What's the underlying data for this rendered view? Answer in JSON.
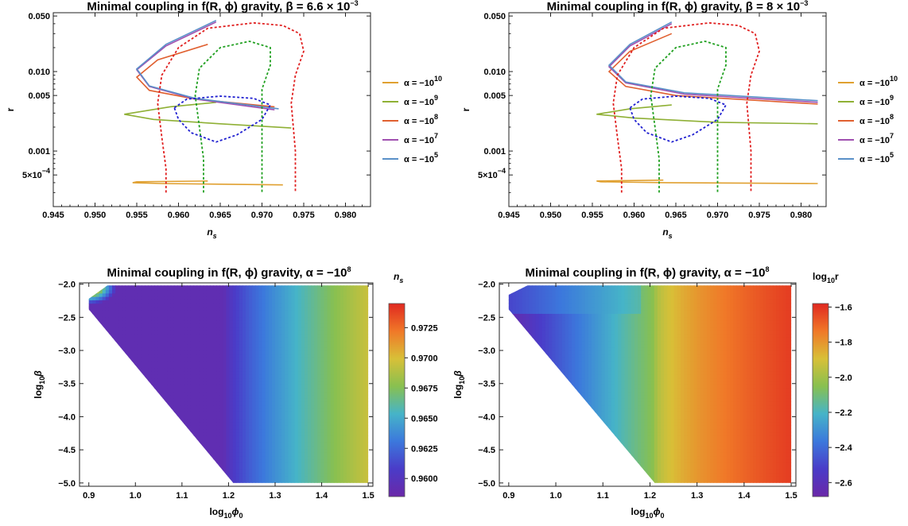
{
  "chart_data": [
    {
      "id": "tl",
      "type": "line",
      "title": "Minimal coupling in f(R, ϕ) gravity, β = 6.6 × 10",
      "title_exp": "−3",
      "xlabel": "n",
      "xlabel_sub": "s",
      "ylabel": "r",
      "xlim": [
        0.945,
        0.983
      ],
      "ylim": [
        0.0002,
        0.055
      ],
      "yscale": "log",
      "xticks": [
        "0.945",
        "0.950",
        "0.955",
        "0.960",
        "0.965",
        "0.970",
        "0.975",
        "0.980"
      ],
      "yticks": [
        {
          "v": 0.05,
          "label": "0.050"
        },
        {
          "v": 0.01,
          "label": "0.010"
        },
        {
          "v": 0.005,
          "label": "0.005"
        },
        {
          "v": 0.001,
          "label": "0.001"
        },
        {
          "v": 0.0005,
          "label": "5×10",
          "exp": "−4"
        }
      ],
      "legend_position": "right",
      "series": [
        {
          "name": "α = −10",
          "exp": "10",
          "color": "#e0a030",
          "style": "solid",
          "points": [
            [
              0.9635,
              0.00042
            ],
            [
              0.955,
              0.00041
            ],
            [
              0.9545,
              0.0004
            ],
            [
              0.958,
              0.00039
            ],
            [
              0.9725,
              0.000375
            ]
          ]
        },
        {
          "name": "α = −10",
          "exp": "9",
          "color": "#8fb035",
          "style": "solid",
          "points": [
            [
              0.9645,
              0.0041
            ],
            [
              0.959,
              0.0036
            ],
            [
              0.9535,
              0.0029
            ],
            [
              0.957,
              0.0025
            ],
            [
              0.965,
              0.0022
            ],
            [
              0.9735,
              0.00195
            ]
          ]
        },
        {
          "name": "α = −10",
          "exp": "8",
          "color": "#e06030",
          "style": "solid",
          "points": [
            [
              0.9635,
              0.022
            ],
            [
              0.9575,
              0.014
            ],
            [
              0.955,
              0.0085
            ],
            [
              0.9565,
              0.0058
            ],
            [
              0.962,
              0.0045
            ],
            [
              0.9715,
              0.0036
            ]
          ]
        },
        {
          "name": "α = −10",
          "exp": "7",
          "color": "#a050b0",
          "style": "solid",
          "points": [
            [
              0.9645,
              0.042
            ],
            [
              0.9585,
              0.021
            ],
            [
              0.955,
              0.0105
            ],
            [
              0.9565,
              0.0065
            ],
            [
              0.962,
              0.0045
            ],
            [
              0.9715,
              0.0033
            ]
          ]
        },
        {
          "name": "α = −10",
          "exp": "5",
          "color": "#5a90c8",
          "style": "solid",
          "points": [
            [
              0.9645,
              0.044
            ],
            [
              0.9585,
              0.022
            ],
            [
              0.955,
              0.0108
            ],
            [
              0.9565,
              0.0066
            ],
            [
              0.962,
              0.0046
            ],
            [
              0.972,
              0.0034
            ]
          ]
        },
        {
          "name": "",
          "color": "#e02020",
          "style": "dashed",
          "points": [
            [
              0.9585,
              0.0003
            ],
            [
              0.9585,
              0.0006
            ],
            [
              0.958,
              0.0015
            ],
            [
              0.9575,
              0.004
            ],
            [
              0.958,
              0.009
            ],
            [
              0.96,
              0.02
            ],
            [
              0.9635,
              0.035
            ],
            [
              0.969,
              0.041
            ],
            [
              0.9725,
              0.038
            ],
            [
              0.9745,
              0.03
            ],
            [
              0.975,
              0.018
            ],
            [
              0.974,
              0.009
            ],
            [
              0.9735,
              0.004
            ],
            [
              0.974,
              0.001
            ],
            [
              0.974,
              0.0003
            ]
          ]
        },
        {
          "name": "",
          "color": "#20a020",
          "style": "dashed",
          "points": [
            [
              0.963,
              0.0003
            ],
            [
              0.963,
              0.0008
            ],
            [
              0.9625,
              0.002
            ],
            [
              0.962,
              0.005
            ],
            [
              0.9625,
              0.011
            ],
            [
              0.965,
              0.02
            ],
            [
              0.9685,
              0.024
            ],
            [
              0.971,
              0.02
            ],
            [
              0.971,
              0.012
            ],
            [
              0.97,
              0.006
            ],
            [
              0.97,
              0.002
            ],
            [
              0.97,
              0.0006
            ],
            [
              0.97,
              0.0003
            ]
          ]
        },
        {
          "name": "",
          "color": "#2020d0",
          "style": "dashed",
          "points": [
            [
              0.9595,
              0.0035
            ],
            [
              0.961,
              0.0045
            ],
            [
              0.965,
              0.0049
            ],
            [
              0.969,
              0.0046
            ],
            [
              0.971,
              0.0038
            ],
            [
              0.97,
              0.0025
            ],
            [
              0.967,
              0.0016
            ],
            [
              0.9645,
              0.0013
            ],
            [
              0.9615,
              0.0017
            ],
            [
              0.96,
              0.0025
            ],
            [
              0.9595,
              0.0035
            ]
          ]
        }
      ]
    },
    {
      "id": "tr",
      "type": "line",
      "title": "Minimal coupling in f(R, ϕ) gravity, β = 8 × 10",
      "title_exp": "−3",
      "xlabel": "n",
      "xlabel_sub": "s",
      "ylabel": "r",
      "xlim": [
        0.945,
        0.983
      ],
      "ylim": [
        0.0002,
        0.055
      ],
      "yscale": "log",
      "xticks": [
        "0.945",
        "0.950",
        "0.955",
        "0.960",
        "0.965",
        "0.970",
        "0.975",
        "0.980"
      ],
      "yticks": [
        {
          "v": 0.05,
          "label": "0.050"
        },
        {
          "v": 0.01,
          "label": "0.010"
        },
        {
          "v": 0.005,
          "label": "0.005"
        },
        {
          "v": 0.001,
          "label": "0.001"
        },
        {
          "v": 0.0005,
          "label": "5×10",
          "exp": "−4"
        }
      ],
      "legend_position": "right",
      "series": [
        {
          "name": "α = −10",
          "exp": "10",
          "color": "#e0a030",
          "style": "solid",
          "points": [
            [
              0.9635,
              0.00043
            ],
            [
              0.9555,
              0.00042
            ],
            [
              0.956,
              0.00041
            ],
            [
              0.964,
              0.0004
            ],
            [
              0.982,
              0.00039
            ]
          ]
        },
        {
          "name": "α = −10",
          "exp": "9",
          "color": "#8fb035",
          "style": "solid",
          "points": [
            [
              0.9645,
              0.0038
            ],
            [
              0.9595,
              0.0034
            ],
            [
              0.9555,
              0.0029
            ],
            [
              0.96,
              0.0026
            ],
            [
              0.97,
              0.0023
            ],
            [
              0.982,
              0.0022
            ]
          ]
        },
        {
          "name": "α = −10",
          "exp": "8",
          "color": "#e06030",
          "style": "solid",
          "points": [
            [
              0.9645,
              0.03
            ],
            [
              0.9595,
              0.018
            ],
            [
              0.957,
              0.01
            ],
            [
              0.959,
              0.0065
            ],
            [
              0.965,
              0.005
            ],
            [
              0.982,
              0.0039
            ]
          ]
        },
        {
          "name": "α = −10",
          "exp": "7",
          "color": "#a050b0",
          "style": "solid",
          "points": [
            [
              0.9645,
              0.04
            ],
            [
              0.9595,
              0.021
            ],
            [
              0.957,
              0.0115
            ],
            [
              0.959,
              0.0072
            ],
            [
              0.966,
              0.0052
            ],
            [
              0.982,
              0.0041
            ]
          ]
        },
        {
          "name": "α = −10",
          "exp": "5",
          "color": "#5a90c8",
          "style": "solid",
          "points": [
            [
              0.9645,
              0.042
            ],
            [
              0.9595,
              0.022
            ],
            [
              0.957,
              0.012
            ],
            [
              0.959,
              0.0074
            ],
            [
              0.966,
              0.0054
            ],
            [
              0.982,
              0.0043
            ]
          ]
        },
        {
          "name": "",
          "color": "#e02020",
          "style": "dashed",
          "points": [
            [
              0.9585,
              0.0003
            ],
            [
              0.9585,
              0.0006
            ],
            [
              0.958,
              0.0015
            ],
            [
              0.9575,
              0.004
            ],
            [
              0.958,
              0.009
            ],
            [
              0.96,
              0.02
            ],
            [
              0.9635,
              0.035
            ],
            [
              0.969,
              0.041
            ],
            [
              0.9725,
              0.038
            ],
            [
              0.9745,
              0.03
            ],
            [
              0.975,
              0.018
            ],
            [
              0.974,
              0.009
            ],
            [
              0.9735,
              0.004
            ],
            [
              0.974,
              0.001
            ],
            [
              0.974,
              0.0003
            ]
          ]
        },
        {
          "name": "",
          "color": "#20a020",
          "style": "dashed",
          "points": [
            [
              0.963,
              0.0003
            ],
            [
              0.963,
              0.0008
            ],
            [
              0.9625,
              0.002
            ],
            [
              0.962,
              0.005
            ],
            [
              0.9625,
              0.011
            ],
            [
              0.965,
              0.02
            ],
            [
              0.9685,
              0.024
            ],
            [
              0.971,
              0.02
            ],
            [
              0.971,
              0.012
            ],
            [
              0.97,
              0.006
            ],
            [
              0.97,
              0.002
            ],
            [
              0.97,
              0.0006
            ],
            [
              0.97,
              0.0003
            ]
          ]
        },
        {
          "name": "",
          "color": "#2020d0",
          "style": "dashed",
          "points": [
            [
              0.9595,
              0.0035
            ],
            [
              0.961,
              0.0045
            ],
            [
              0.965,
              0.0049
            ],
            [
              0.969,
              0.0046
            ],
            [
              0.971,
              0.0038
            ],
            [
              0.97,
              0.0025
            ],
            [
              0.967,
              0.0016
            ],
            [
              0.9645,
              0.0013
            ],
            [
              0.9615,
              0.0017
            ],
            [
              0.96,
              0.0025
            ],
            [
              0.9595,
              0.0035
            ]
          ]
        }
      ]
    },
    {
      "id": "bl",
      "type": "heatmap",
      "title": "Minimal coupling in f(R, ϕ) gravity, α = −10",
      "title_exp": "8",
      "xlabel": "log",
      "xlabel_sub": "10",
      "xlabel_tail": "ϕ",
      "xlabel_tail_sub": "0",
      "ylabel": "log",
      "ylabel_sub": "10",
      "ylabel_tail": "β",
      "xlim": [
        0.88,
        1.51
      ],
      "ylim": [
        -5.05,
        -1.98
      ],
      "xticks": [
        0.9,
        1.0,
        1.1,
        1.2,
        1.3,
        1.4,
        1.5
      ],
      "yticks": [
        -2.0,
        -2.5,
        -3.0,
        -3.5,
        -4.0,
        -4.5,
        -5.0
      ],
      "xtick_labels": [
        "0.9",
        "1.0",
        "1.1",
        "1.2",
        "1.3",
        "1.4",
        "1.5"
      ],
      "ytick_labels": [
        "−2.0",
        "−2.5",
        "−3.0",
        "−3.5",
        "−4.0",
        "−4.5",
        "−5.0"
      ],
      "region": [
        [
          0.9,
          -2.38
        ],
        [
          0.9,
          -2.22
        ],
        [
          0.94,
          -2.02
        ],
        [
          1.5,
          -2.02
        ],
        [
          1.5,
          -5.0
        ],
        [
          1.21,
          -5.0
        ]
      ],
      "colorbar_title": "n",
      "colorbar_title_sub": "s",
      "colorbar_range": [
        0.9585,
        0.9745
      ],
      "colorbar_ticks": [
        {
          "v": 0.96,
          "label": "0.9600"
        },
        {
          "v": 0.9625,
          "label": "0.9625"
        },
        {
          "v": 0.965,
          "label": "0.9650"
        },
        {
          "v": 0.9675,
          "label": "0.9675"
        },
        {
          "v": 0.97,
          "label": "0.9700"
        },
        {
          "v": 0.9725,
          "label": "0.9725"
        }
      ],
      "colormap": [
        "#6a28a8",
        "#4a3cc8",
        "#3c78dc",
        "#46b4c8",
        "#88c050",
        "#d8c038",
        "#f07828",
        "#e02820"
      ]
    },
    {
      "id": "br",
      "type": "heatmap",
      "title": "Minimal coupling in f(R, ϕ) gravity, α = −10",
      "title_exp": "8",
      "xlabel": "log",
      "xlabel_sub": "10",
      "xlabel_tail": "ϕ",
      "xlabel_tail_sub": "0",
      "ylabel": "log",
      "ylabel_sub": "10",
      "ylabel_tail": "β",
      "xlim": [
        0.88,
        1.51
      ],
      "ylim": [
        -5.05,
        -1.98
      ],
      "xticks": [
        0.9,
        1.0,
        1.1,
        1.2,
        1.3,
        1.4,
        1.5
      ],
      "yticks": [
        -2.0,
        -2.5,
        -3.0,
        -3.5,
        -4.0,
        -4.5,
        -5.0
      ],
      "xtick_labels": [
        "0.9",
        "1.0",
        "1.1",
        "1.2",
        "1.3",
        "1.4",
        "1.5"
      ],
      "ytick_labels": [
        "−2.0",
        "−2.5",
        "−3.0",
        "−3.5",
        "−4.0",
        "−4.5",
        "−5.0"
      ],
      "region": [
        [
          0.9,
          -2.38
        ],
        [
          0.9,
          -2.16
        ],
        [
          0.94,
          -2.02
        ],
        [
          1.5,
          -2.02
        ],
        [
          1.5,
          -5.0
        ],
        [
          1.21,
          -5.0
        ]
      ],
      "colorbar_title": "log",
      "colorbar_title_sub": "10",
      "colorbar_title_tail": "r",
      "colorbar_range": [
        -2.68,
        -1.58
      ],
      "colorbar_ticks": [
        {
          "v": -1.6,
          "label": "−1.6"
        },
        {
          "v": -1.8,
          "label": "−1.8"
        },
        {
          "v": -2.0,
          "label": "−2.0"
        },
        {
          "v": -2.2,
          "label": "−2.2"
        },
        {
          "v": -2.4,
          "label": "−2.4"
        },
        {
          "v": -2.6,
          "label": "−2.6"
        }
      ],
      "colormap": [
        "#6a28a8",
        "#4a3cc8",
        "#3c78dc",
        "#46b4c8",
        "#88c050",
        "#d8c038",
        "#f07828",
        "#e02820"
      ]
    }
  ]
}
